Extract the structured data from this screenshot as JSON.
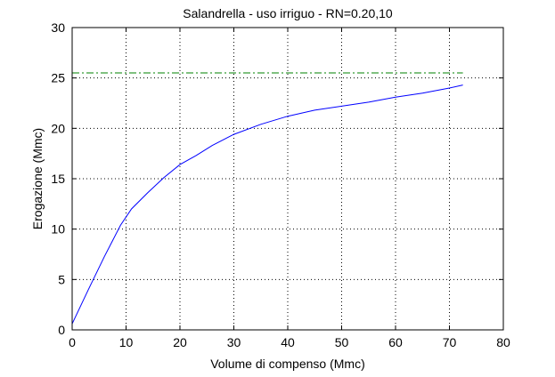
{
  "chart_data": {
    "type": "line",
    "title": "Salandrella  -  uso irriguo  -   RN=0.20,10",
    "xlabel": "Volume di compenso (Mmc)",
    "ylabel": "Erogazione (Mmc)",
    "xlim": [
      0,
      80
    ],
    "ylim": [
      0,
      30
    ],
    "xticks": [
      "0",
      "10",
      "20",
      "30",
      "40",
      "50",
      "60",
      "70",
      "80"
    ],
    "yticks": [
      "0",
      "5",
      "10",
      "15",
      "20",
      "25",
      "30"
    ],
    "grid": true,
    "series": [
      {
        "style": "solid",
        "color": "#0000ff",
        "x": [
          0,
          3,
          6,
          9,
          11,
          14,
          17,
          20,
          23,
          26,
          30,
          35,
          40,
          45,
          50,
          55,
          60,
          65,
          70,
          72.5
        ],
        "y": [
          0.6,
          4,
          7.3,
          10.4,
          12,
          13.6,
          15.1,
          16.4,
          17.3,
          18.3,
          19.4,
          20.4,
          21.2,
          21.8,
          22.2,
          22.6,
          23.1,
          23.5,
          24,
          24.3
        ]
      },
      {
        "style": "dash-dot",
        "color": "#008000",
        "x": [
          0,
          72.5
        ],
        "y": [
          25.5,
          25.5
        ]
      }
    ]
  }
}
